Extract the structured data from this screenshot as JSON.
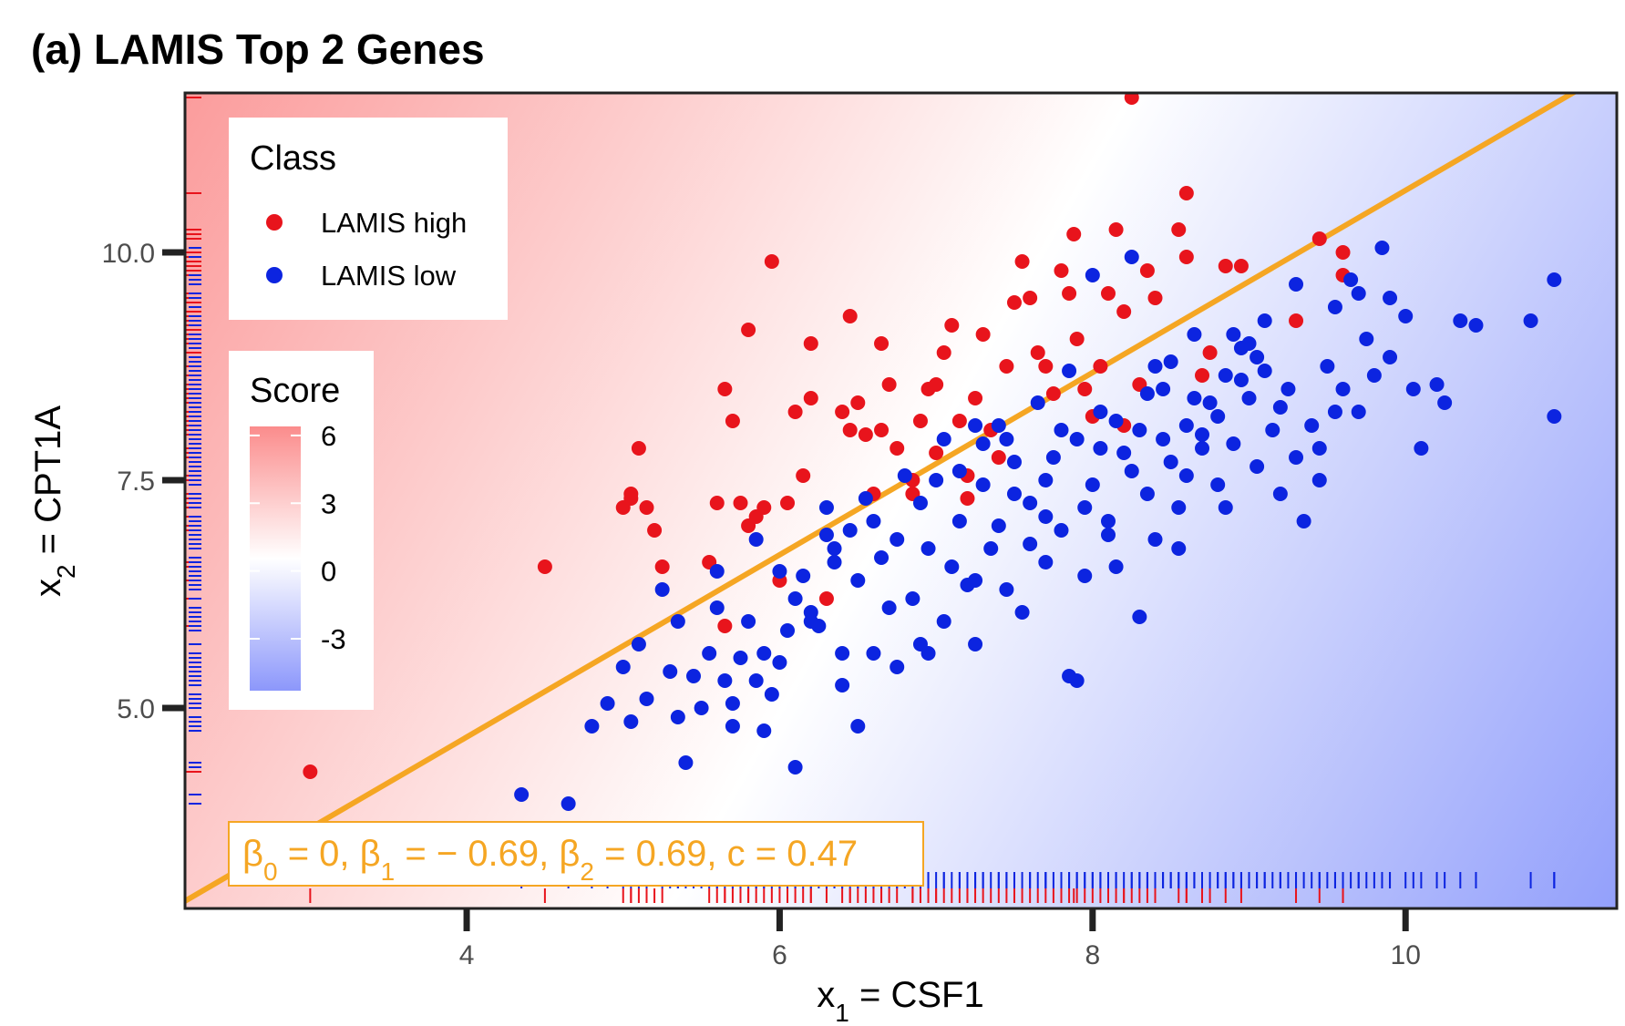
{
  "chart_data": {
    "type": "scatter",
    "title": "(a) LAMIS Top 2 Genes",
    "xlabel": {
      "prefix": "x",
      "sub": "1",
      "suffix": " = CSF1"
    },
    "ylabel": {
      "prefix": "x",
      "sub": "2",
      "suffix": " = CPT1A"
    },
    "xlim": [
      2.2,
      11.35
    ],
    "ylim": [
      2.8,
      11.75
    ],
    "xticks": [
      {
        "value": 4,
        "label": "4"
      },
      {
        "value": 6,
        "label": "6"
      },
      {
        "value": 8,
        "label": "8"
      },
      {
        "value": 10,
        "label": "10"
      }
    ],
    "yticks": [
      {
        "value": 5.0,
        "label": "5.0"
      },
      {
        "value": 7.5,
        "label": "7.5"
      },
      {
        "value": 10.0,
        "label": "10.0"
      }
    ],
    "background": "diverging score gradient, red (positive) above the decision line, blue (negative) below",
    "decision_line": {
      "beta0": 0,
      "beta1": -0.69,
      "beta2": 0.69,
      "c": 0.47,
      "color": "#f5a623"
    },
    "equation": [
      {
        "t": "β",
        "sub": "0"
      },
      {
        "t": " = 0, "
      },
      {
        "t": "β",
        "sub": "1"
      },
      {
        "t": " = − 0.69, "
      },
      {
        "t": "β",
        "sub": "2"
      },
      {
        "t": " = 0.69, c = 0.47"
      }
    ],
    "legend_class": {
      "title": "Class",
      "items": [
        {
          "label": "LAMIS high",
          "color": "#e8141c"
        },
        {
          "label": "LAMIS low",
          "color": "#0c24e0"
        }
      ]
    },
    "legend_score": {
      "title": "Score",
      "ticks": [
        {
          "value": 6,
          "label": "6"
        },
        {
          "value": 3,
          "label": "3"
        },
        {
          "value": 0,
          "label": "0"
        },
        {
          "value": -3,
          "label": "-3"
        }
      ],
      "range": [
        -5.3,
        6.4
      ],
      "colors": [
        "#fb8c8c",
        "#ffffff",
        "#8c97fb"
      ]
    },
    "rug": true,
    "series": [
      {
        "name": "LAMIS high",
        "color": "#e8141c",
        "points": [
          [
            3.0,
            4.3
          ],
          [
            4.5,
            6.55
          ],
          [
            5.0,
            7.2
          ],
          [
            5.05,
            7.3
          ],
          [
            5.1,
            7.85
          ],
          [
            5.15,
            7.2
          ],
          [
            5.2,
            6.95
          ],
          [
            5.25,
            6.55
          ],
          [
            5.05,
            7.35
          ],
          [
            5.65,
            5.9
          ],
          [
            5.55,
            6.6
          ],
          [
            5.6,
            7.25
          ],
          [
            5.65,
            8.5
          ],
          [
            5.7,
            8.15
          ],
          [
            5.8,
            7.0
          ],
          [
            5.85,
            7.1
          ],
          [
            5.9,
            7.2
          ],
          [
            5.75,
            7.25
          ],
          [
            5.95,
            9.9
          ],
          [
            5.8,
            9.15
          ],
          [
            6.05,
            7.25
          ],
          [
            6.1,
            8.25
          ],
          [
            6.15,
            7.55
          ],
          [
            6.2,
            8.4
          ],
          [
            6.2,
            9.0
          ],
          [
            6.3,
            6.2
          ],
          [
            6.0,
            6.4
          ],
          [
            6.4,
            8.25
          ],
          [
            6.45,
            8.05
          ],
          [
            6.45,
            9.3
          ],
          [
            6.5,
            8.35
          ],
          [
            6.55,
            8.0
          ],
          [
            6.6,
            7.35
          ],
          [
            6.65,
            8.05
          ],
          [
            6.7,
            8.55
          ],
          [
            6.65,
            9.0
          ],
          [
            6.75,
            7.85
          ],
          [
            6.85,
            7.35
          ],
          [
            6.9,
            8.15
          ],
          [
            6.95,
            8.5
          ],
          [
            7.0,
            8.55
          ],
          [
            7.05,
            8.9
          ],
          [
            7.1,
            9.2
          ],
          [
            7.15,
            8.15
          ],
          [
            7.2,
            7.55
          ],
          [
            7.25,
            8.4
          ],
          [
            7.3,
            9.1
          ],
          [
            7.35,
            8.05
          ],
          [
            7.4,
            7.75
          ],
          [
            7.45,
            8.75
          ],
          [
            7.5,
            9.45
          ],
          [
            7.55,
            9.9
          ],
          [
            7.6,
            9.5
          ],
          [
            7.65,
            8.9
          ],
          [
            7.7,
            8.75
          ],
          [
            7.75,
            8.45
          ],
          [
            7.8,
            9.8
          ],
          [
            7.85,
            9.55
          ],
          [
            7.9,
            9.05
          ],
          [
            7.95,
            8.5
          ],
          [
            8.0,
            8.2
          ],
          [
            8.05,
            8.75
          ],
          [
            8.1,
            9.55
          ],
          [
            7.88,
            10.2
          ],
          [
            8.15,
            10.25
          ],
          [
            8.2,
            9.35
          ],
          [
            8.25,
            11.7
          ],
          [
            8.3,
            8.55
          ],
          [
            8.35,
            9.8
          ],
          [
            8.4,
            9.5
          ],
          [
            8.55,
            10.25
          ],
          [
            8.6,
            10.65
          ],
          [
            8.6,
            9.95
          ],
          [
            8.7,
            8.65
          ],
          [
            8.75,
            8.9
          ],
          [
            8.85,
            9.85
          ],
          [
            8.95,
            9.85
          ],
          [
            9.3,
            9.25
          ],
          [
            9.45,
            10.15
          ],
          [
            9.6,
            9.75
          ],
          [
            9.6,
            10.0
          ],
          [
            7.2,
            7.3
          ],
          [
            7.0,
            7.8
          ],
          [
            6.85,
            7.5
          ],
          [
            8.2,
            8.1
          ]
        ]
      },
      {
        "name": "LAMIS low",
        "color": "#0c24e0",
        "points": [
          [
            4.35,
            4.05
          ],
          [
            4.65,
            3.95
          ],
          [
            4.8,
            4.8
          ],
          [
            4.9,
            5.05
          ],
          [
            5.0,
            5.45
          ],
          [
            5.05,
            4.85
          ],
          [
            5.1,
            5.7
          ],
          [
            5.15,
            5.1
          ],
          [
            5.25,
            6.3
          ],
          [
            5.3,
            5.4
          ],
          [
            5.35,
            4.9
          ],
          [
            5.4,
            4.4
          ],
          [
            5.45,
            5.35
          ],
          [
            5.5,
            5.0
          ],
          [
            5.55,
            5.6
          ],
          [
            5.6,
            6.1
          ],
          [
            5.65,
            5.3
          ],
          [
            5.7,
            5.05
          ],
          [
            5.7,
            4.8
          ],
          [
            5.75,
            5.55
          ],
          [
            5.8,
            5.95
          ],
          [
            5.85,
            5.3
          ],
          [
            5.9,
            4.75
          ],
          [
            5.9,
            5.6
          ],
          [
            5.95,
            5.15
          ],
          [
            6.0,
            6.5
          ],
          [
            6.05,
            5.85
          ],
          [
            6.1,
            4.35
          ],
          [
            6.15,
            6.45
          ],
          [
            6.2,
            6.05
          ],
          [
            6.25,
            5.9
          ],
          [
            6.3,
            7.2
          ],
          [
            6.35,
            6.75
          ],
          [
            6.4,
            5.25
          ],
          [
            6.45,
            6.95
          ],
          [
            6.5,
            6.4
          ],
          [
            6.5,
            4.8
          ],
          [
            6.55,
            7.3
          ],
          [
            6.6,
            5.6
          ],
          [
            6.65,
            6.65
          ],
          [
            6.7,
            6.1
          ],
          [
            6.75,
            5.45
          ],
          [
            6.8,
            7.55
          ],
          [
            6.85,
            6.2
          ],
          [
            6.9,
            5.7
          ],
          [
            6.95,
            6.75
          ],
          [
            7.0,
            7.5
          ],
          [
            7.05,
            5.95
          ],
          [
            7.1,
            6.55
          ],
          [
            7.15,
            7.05
          ],
          [
            7.2,
            6.35
          ],
          [
            7.25,
            5.7
          ],
          [
            7.25,
            8.1
          ],
          [
            7.3,
            7.45
          ],
          [
            7.35,
            6.75
          ],
          [
            7.4,
            8.1
          ],
          [
            7.45,
            6.3
          ],
          [
            7.5,
            7.7
          ],
          [
            7.55,
            6.05
          ],
          [
            7.6,
            7.25
          ],
          [
            7.65,
            8.35
          ],
          [
            7.7,
            6.6
          ],
          [
            7.75,
            7.75
          ],
          [
            7.8,
            6.95
          ],
          [
            7.85,
            5.35
          ],
          [
            7.9,
            5.3
          ],
          [
            7.9,
            7.95
          ],
          [
            7.95,
            6.45
          ],
          [
            8.0,
            7.45
          ],
          [
            8.05,
            8.25
          ],
          [
            8.1,
            7.05
          ],
          [
            8.15,
            6.55
          ],
          [
            8.2,
            7.8
          ],
          [
            8.25,
            9.95
          ],
          [
            8.3,
            8.05
          ],
          [
            8.35,
            7.35
          ],
          [
            8.4,
            6.85
          ],
          [
            8.45,
            8.5
          ],
          [
            8.5,
            7.7
          ],
          [
            8.55,
            7.2
          ],
          [
            8.6,
            8.1
          ],
          [
            8.65,
            9.1
          ],
          [
            8.7,
            7.85
          ],
          [
            8.75,
            8.35
          ],
          [
            8.8,
            7.45
          ],
          [
            8.85,
            8.65
          ],
          [
            8.9,
            7.9
          ],
          [
            8.95,
            8.95
          ],
          [
            9.0,
            8.4
          ],
          [
            9.05,
            7.65
          ],
          [
            9.1,
            9.25
          ],
          [
            9.15,
            8.05
          ],
          [
            9.2,
            7.35
          ],
          [
            9.25,
            8.5
          ],
          [
            9.3,
            9.65
          ],
          [
            9.35,
            7.05
          ],
          [
            9.4,
            8.1
          ],
          [
            9.45,
            7.5
          ],
          [
            9.5,
            8.75
          ],
          [
            9.55,
            9.4
          ],
          [
            9.6,
            8.5
          ],
          [
            9.65,
            9.7
          ],
          [
            9.7,
            8.25
          ],
          [
            9.75,
            9.05
          ],
          [
            9.8,
            8.65
          ],
          [
            9.85,
            10.05
          ],
          [
            9.9,
            8.85
          ],
          [
            10.0,
            9.3
          ],
          [
            10.05,
            8.5
          ],
          [
            10.1,
            7.85
          ],
          [
            10.2,
            8.55
          ],
          [
            10.25,
            8.35
          ],
          [
            10.35,
            9.25
          ],
          [
            10.45,
            9.2
          ],
          [
            10.8,
            9.25
          ],
          [
            10.95,
            9.7
          ],
          [
            10.95,
            8.2
          ],
          [
            6.1,
            6.2
          ],
          [
            6.3,
            6.9
          ],
          [
            6.6,
            7.05
          ],
          [
            6.9,
            7.25
          ],
          [
            7.05,
            7.95
          ],
          [
            7.3,
            7.9
          ],
          [
            7.5,
            7.35
          ],
          [
            7.6,
            6.8
          ],
          [
            7.7,
            7.5
          ],
          [
            7.8,
            8.05
          ],
          [
            7.95,
            7.2
          ],
          [
            8.05,
            7.85
          ],
          [
            8.1,
            6.9
          ],
          [
            8.25,
            7.6
          ],
          [
            8.35,
            8.45
          ],
          [
            8.45,
            7.95
          ],
          [
            8.5,
            8.8
          ],
          [
            8.55,
            6.75
          ],
          [
            8.6,
            7.55
          ],
          [
            8.7,
            8.0
          ],
          [
            8.8,
            8.2
          ],
          [
            8.85,
            7.2
          ],
          [
            8.95,
            8.6
          ],
          [
            9.0,
            9.0
          ],
          [
            9.1,
            8.7
          ],
          [
            9.2,
            8.3
          ],
          [
            9.3,
            7.75
          ],
          [
            9.45,
            7.85
          ],
          [
            9.55,
            8.25
          ],
          [
            9.7,
            9.55
          ],
          [
            9.9,
            9.5
          ],
          [
            8.3,
            6.0
          ],
          [
            7.25,
            6.4
          ],
          [
            6.95,
            5.6
          ],
          [
            6.4,
            5.6
          ],
          [
            6.0,
            5.5
          ],
          [
            5.6,
            6.5
          ],
          [
            5.35,
            5.95
          ],
          [
            5.85,
            6.85
          ],
          [
            6.35,
            6.6
          ],
          [
            7.4,
            7.0
          ],
          [
            7.15,
            7.6
          ],
          [
            7.85,
            8.7
          ],
          [
            8.4,
            8.75
          ],
          [
            8.15,
            8.15
          ],
          [
            8.65,
            8.4
          ],
          [
            9.05,
            8.85
          ],
          [
            8.9,
            9.1
          ],
          [
            8.0,
            9.75
          ],
          [
            7.45,
            7.95
          ],
          [
            7.7,
            7.1
          ],
          [
            6.75,
            6.85
          ],
          [
            6.2,
            5.95
          ]
        ]
      }
    ]
  }
}
